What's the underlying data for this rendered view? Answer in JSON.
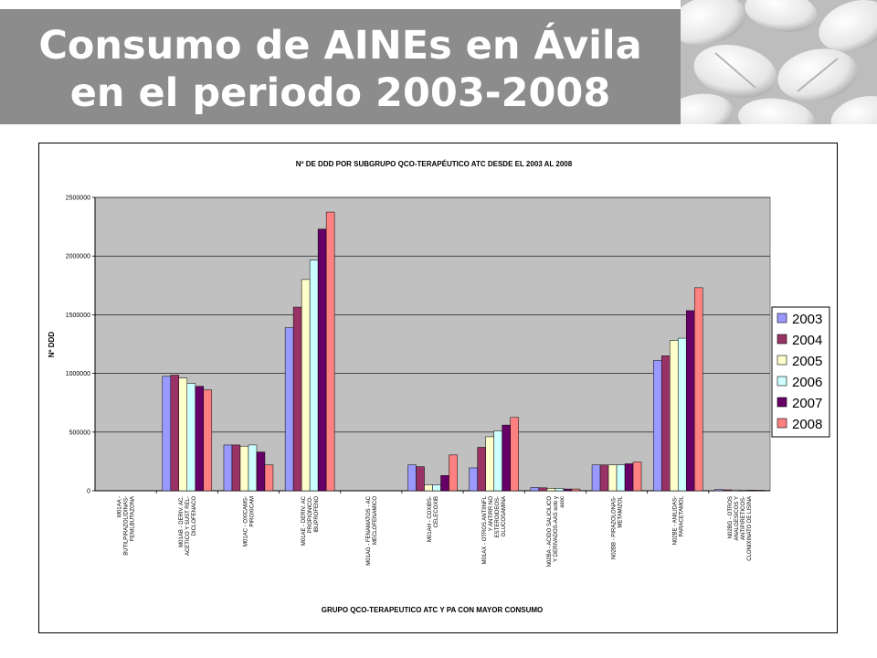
{
  "slide": {
    "title_line1": "Consumo de AINEs en Ávila",
    "title_line2": "en el periodo 2003-2008"
  },
  "chart_data": {
    "type": "bar",
    "title": "Nº DE DDD POR SUBGRUPO QCO-TERAPÉUTICO ATC DESDE EL 2003 AL 2008",
    "xlabel": "GRUPO QCO-TERAPEUTICO ATC Y PA CON MAYOR CONSUMO",
    "ylabel": "Nº DDD",
    "ylim": [
      0,
      2500000
    ],
    "yticks": [
      0,
      500000,
      1000000,
      1500000,
      2000000,
      2500000
    ],
    "grid": true,
    "legend_position": "right",
    "categories": [
      [
        "M01AA -",
        "BUTILPIRAZOLIDINAS-",
        "FENILBUTAZONA"
      ],
      [
        "M01AB - DERIV. AC.",
        "ACETICO Y SUST REL-",
        "DICLOFENACO"
      ],
      [
        "M01AC - OXICAMS-",
        "PIROXICAM"
      ],
      [
        "M01AE - DERIV. AC",
        "PROPIONICO-",
        "IBUPROFENO"
      ],
      [
        "M01AG - FENAMATOS - AC",
        "MECLOFENAMICO"
      ],
      [
        "M01AH - COXIBS-",
        "CELECOXIB"
      ],
      [
        "M01AX - OTROS ANTIINFL",
        "Y ANTIRR NO",
        "ESTEROIDEOS-",
        "GLUCOSAMINA"
      ],
      [
        "N02BA - ACIDO SALICILICO",
        "Y DERIVADOS-AAS solo y",
        "asoc"
      ],
      [
        "N02BB - PIRAZOLONAS-",
        "METAMIZOL"
      ],
      [
        "N02BE - ANILIDAS-",
        "PARACETAMOL"
      ],
      [
        "N02BG - OTROS",
        "ANALGESICOS Y",
        "ANTIPIRETICOS-",
        "CLONIXINATO DE LISINA"
      ]
    ],
    "series": [
      {
        "name": "2003",
        "color": "#9999ff",
        "values": [
          0,
          975000,
          390000,
          1390000,
          0,
          220000,
          195000,
          28000,
          220000,
          1110000,
          10000
        ]
      },
      {
        "name": "2004",
        "color": "#993366",
        "values": [
          0,
          985000,
          390000,
          1565000,
          0,
          205000,
          370000,
          25000,
          220000,
          1150000,
          8000
        ]
      },
      {
        "name": "2005",
        "color": "#ffffcc",
        "values": [
          0,
          960000,
          380000,
          1800000,
          0,
          50000,
          460000,
          20000,
          220000,
          1280000,
          7000
        ]
      },
      {
        "name": "2006",
        "color": "#ccffff",
        "values": [
          0,
          915000,
          390000,
          1965000,
          0,
          50000,
          510000,
          20000,
          220000,
          1300000,
          6000
        ]
      },
      {
        "name": "2007",
        "color": "#660066",
        "values": [
          0,
          890000,
          330000,
          2230000,
          0,
          130000,
          560000,
          15000,
          230000,
          1535000,
          5000
        ]
      },
      {
        "name": "2008",
        "color": "#ff8080",
        "values": [
          0,
          860000,
          220000,
          2375000,
          0,
          305000,
          625000,
          15000,
          245000,
          1730000,
          5000
        ]
      }
    ],
    "plot_background": "#c0c0c0"
  }
}
